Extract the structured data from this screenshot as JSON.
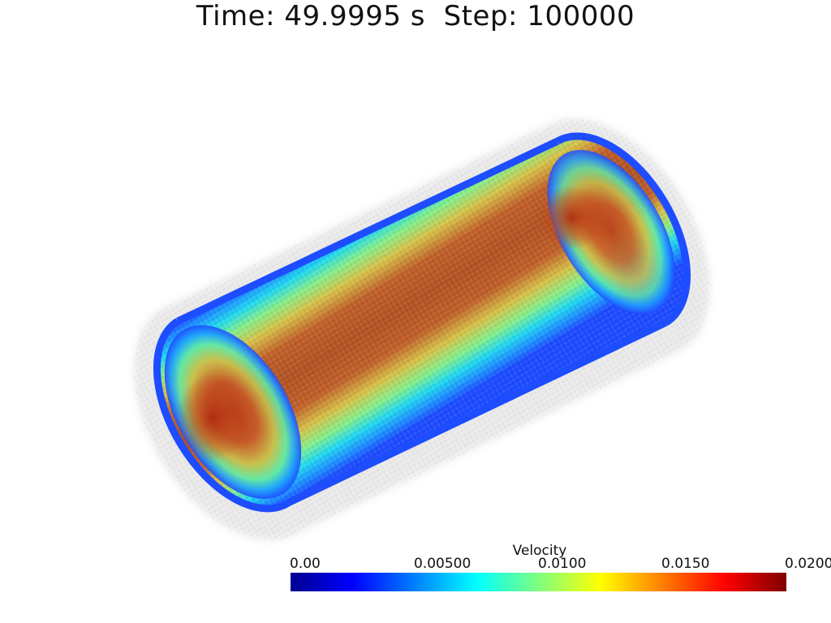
{
  "header": {
    "time_label": "Time:",
    "time_value": "49.9995 s",
    "step_label": "Step:",
    "step_value": "100000"
  },
  "legend": {
    "title": "Velocity",
    "min": 0,
    "max": 0.02,
    "tick_labels": [
      "0.00",
      "0.00500",
      "0.0100",
      "0.0150",
      "0.0200"
    ],
    "colormap": "jet",
    "colormap_stops": [
      "#00008f",
      "#0000ff",
      "#007fff",
      "#00ffff",
      "#7fff7f",
      "#ffff00",
      "#ff7f00",
      "#ff0000",
      "#7f0000"
    ]
  },
  "scene": {
    "object": "cylinder-particle-field",
    "background_color": "#ffffff",
    "halo_color": "#d9d9d9",
    "wall_color": "#1a4dff",
    "core_color": "#b9501f"
  }
}
